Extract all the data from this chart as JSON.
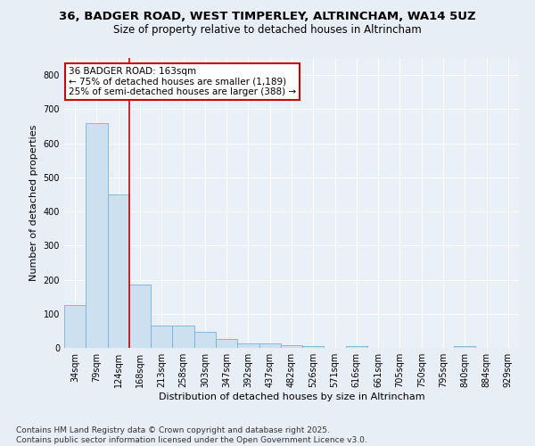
{
  "title": "36, BADGER ROAD, WEST TIMPERLEY, ALTRINCHAM, WA14 5UZ",
  "subtitle": "Size of property relative to detached houses in Altrincham",
  "xlabel": "Distribution of detached houses by size in Altrincham",
  "ylabel": "Number of detached properties",
  "categories": [
    "34sqm",
    "79sqm",
    "124sqm",
    "168sqm",
    "213sqm",
    "258sqm",
    "303sqm",
    "347sqm",
    "392sqm",
    "437sqm",
    "482sqm",
    "526sqm",
    "571sqm",
    "616sqm",
    "661sqm",
    "705sqm",
    "750sqm",
    "795sqm",
    "840sqm",
    "884sqm",
    "929sqm"
  ],
  "values": [
    125,
    660,
    450,
    185,
    65,
    65,
    47,
    25,
    12,
    13,
    8,
    5,
    0,
    5,
    0,
    0,
    0,
    0,
    5,
    0,
    0
  ],
  "bar_color": "#cce0f0",
  "bar_edgecolor": "#7aafd4",
  "vline_color": "#cc0000",
  "annotation_line1": "36 BADGER ROAD: 163sqm",
  "annotation_line2": "← 75% of detached houses are smaller (1,189)",
  "annotation_line3": "25% of semi-detached houses are larger (388) →",
  "annotation_box_color": "#ffffff",
  "annotation_box_edgecolor": "#cc0000",
  "ylim": [
    0,
    850
  ],
  "yticks": [
    0,
    100,
    200,
    300,
    400,
    500,
    600,
    700,
    800
  ],
  "bg_color": "#e8eef6",
  "plot_bg_color": "#eaf0f8",
  "footnote": "Contains HM Land Registry data © Crown copyright and database right 2025.\nContains public sector information licensed under the Open Government Licence v3.0.",
  "title_fontsize": 9.5,
  "subtitle_fontsize": 8.5,
  "annotation_fontsize": 7.5,
  "footnote_fontsize": 6.5,
  "ylabel_fontsize": 8,
  "xlabel_fontsize": 8,
  "tick_fontsize": 7
}
